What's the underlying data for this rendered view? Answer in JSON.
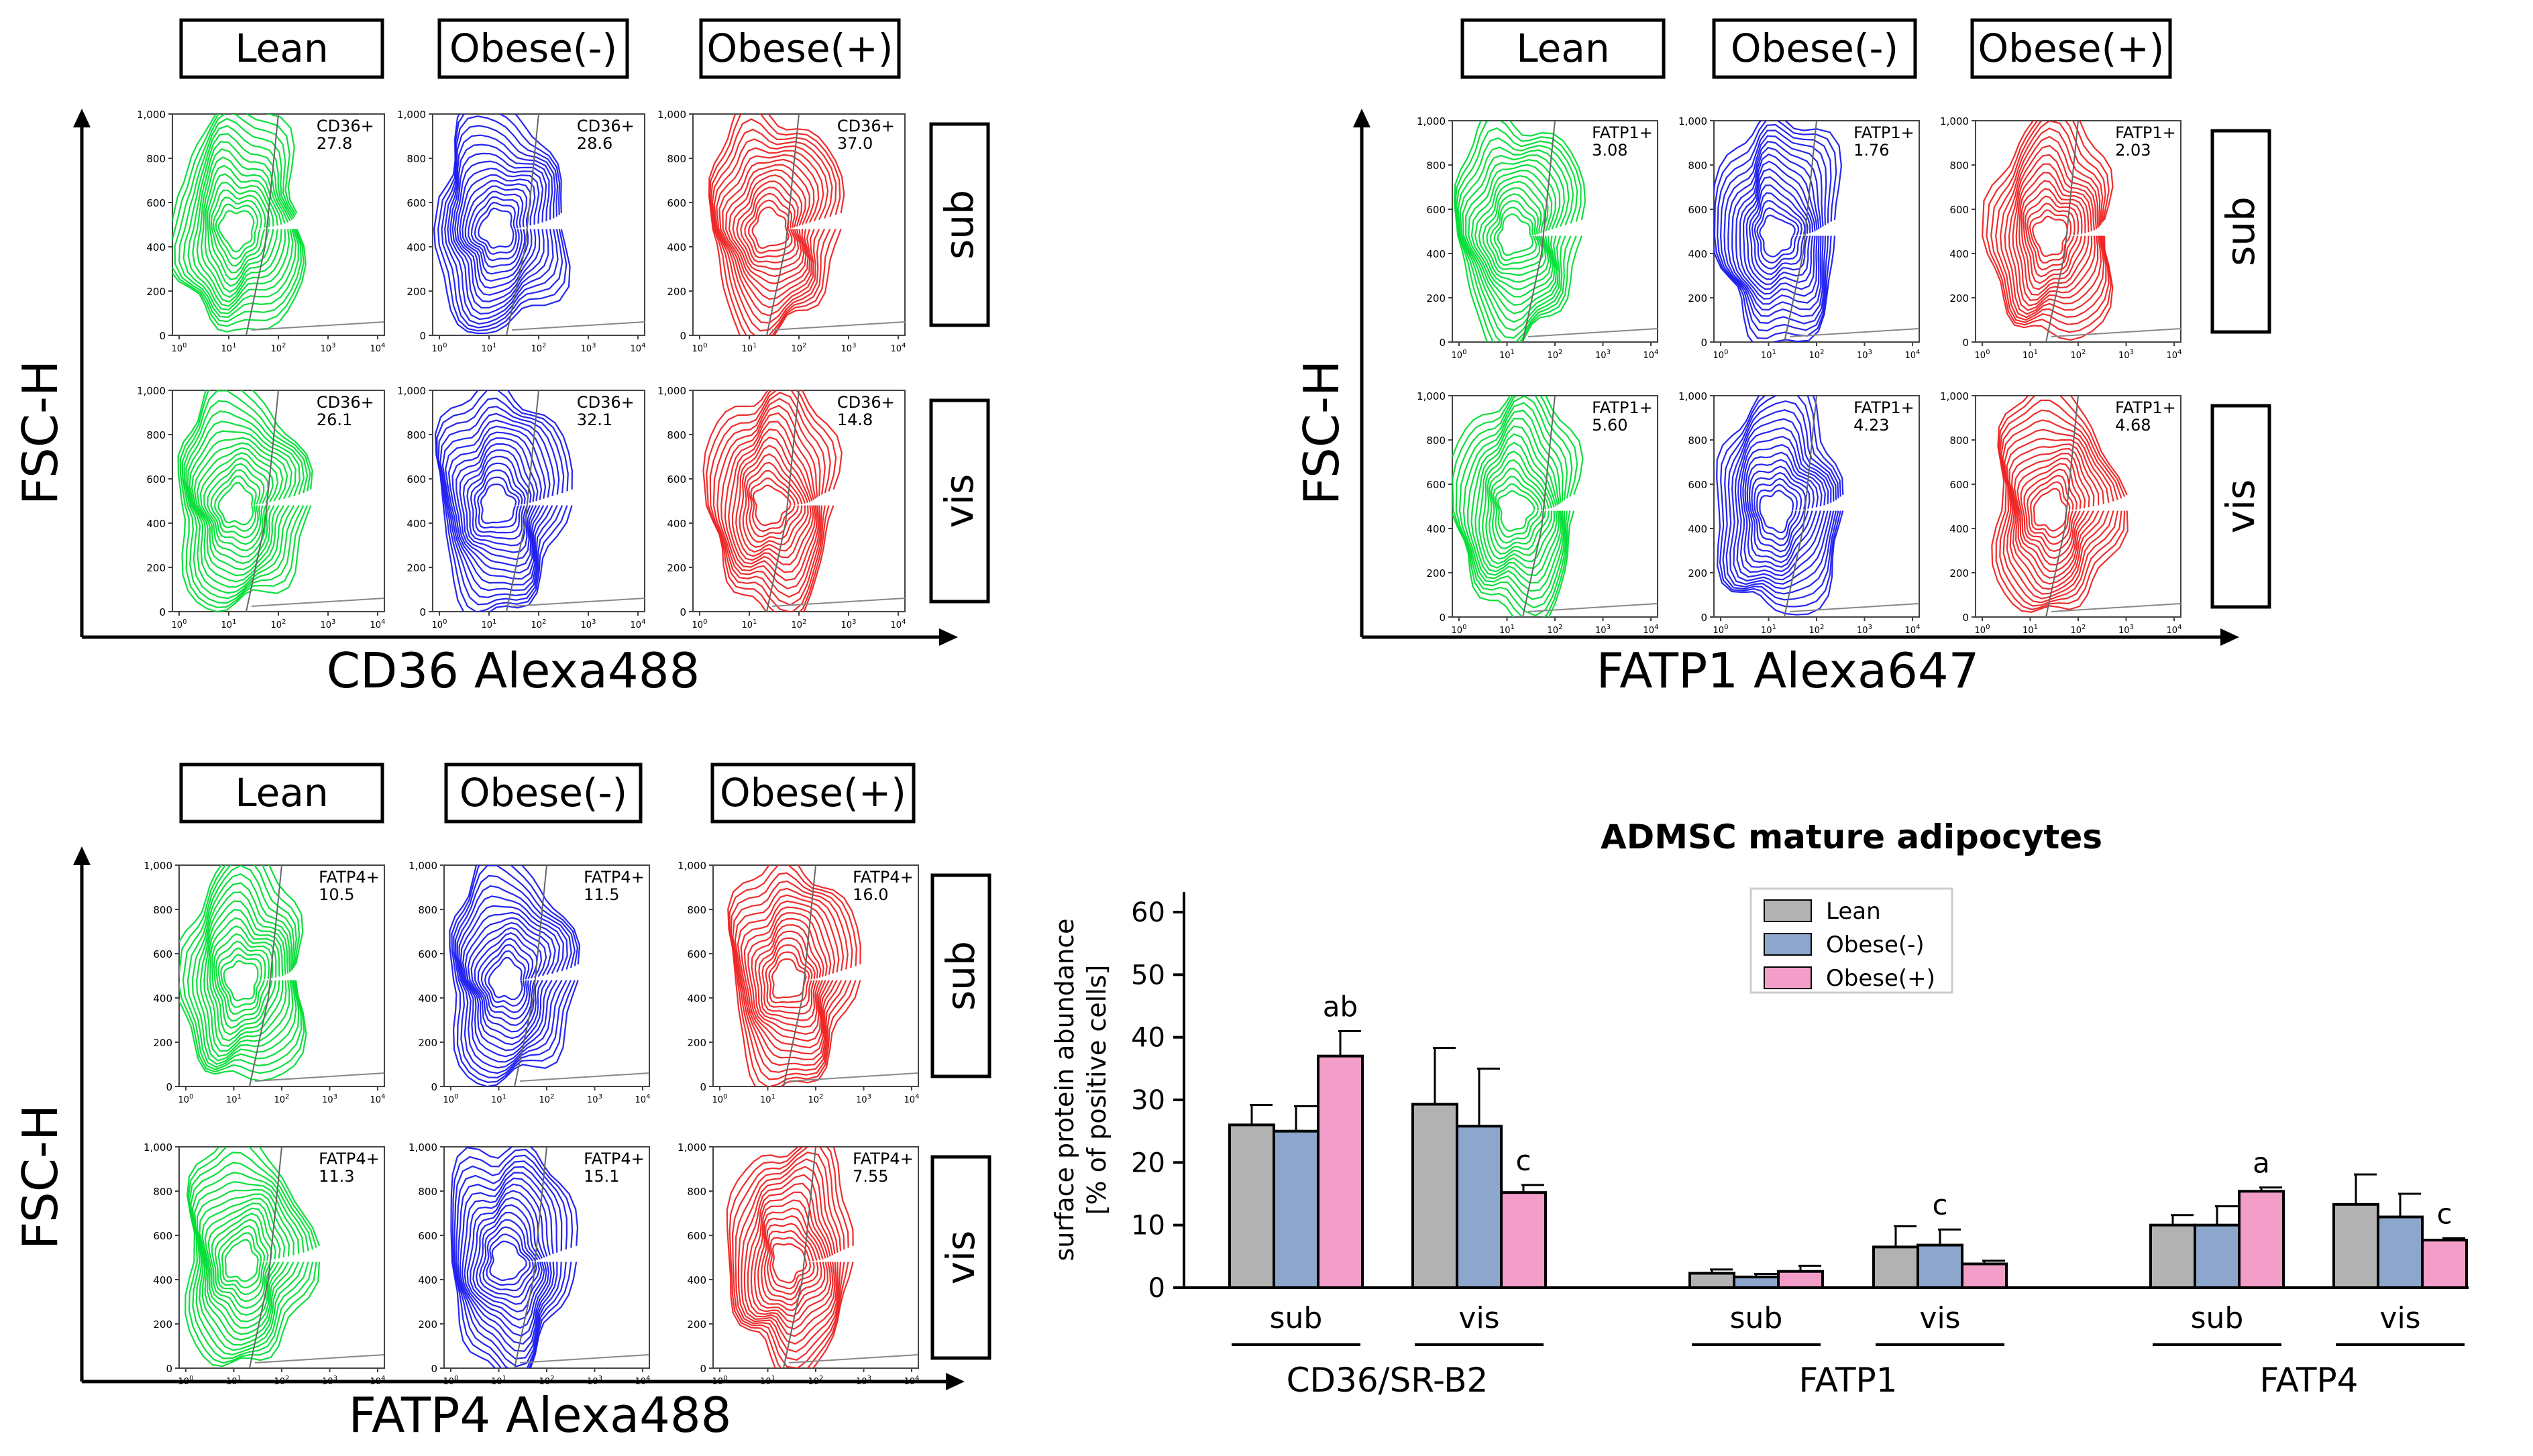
{
  "colors": {
    "lean": "#00dd33",
    "obese_minus": "#1a1aee",
    "obese_plus": "#ee2222",
    "bar_lean": "#b2b2b2",
    "bar_obese_minus": "#8ca6cc",
    "bar_obese_plus": "#f29ec8"
  },
  "panels": [
    {
      "id": "cd36",
      "xlabel": "CD36 Alexa488",
      "ylabel": "FSC-H",
      "groups": [
        "Lean",
        "Obese(-)",
        "Obese(+)"
      ],
      "rows": [
        "sub",
        "vis"
      ],
      "gate_label": "CD36+",
      "values": [
        [
          "27.8",
          "28.6",
          "37.0"
        ],
        [
          "26.1",
          "32.1",
          "14.8"
        ]
      ],
      "yticks": [
        "1,000",
        "800",
        "600",
        "400",
        "200",
        "0"
      ]
    },
    {
      "id": "fatp1",
      "xlabel": "FATP1 Alexa647",
      "ylabel": "FSC-H",
      "groups": [
        "Lean",
        "Obese(-)",
        "Obese(+)"
      ],
      "rows": [
        "sub",
        "vis"
      ],
      "gate_label": "FATP1+",
      "values": [
        [
          "3.08",
          "1.76",
          "2.03"
        ],
        [
          "5.60",
          "4.23",
          "4.68"
        ]
      ],
      "yticks": [
        "1,000",
        "800",
        "600",
        "400",
        "200",
        "0"
      ]
    },
    {
      "id": "fatp4",
      "xlabel": "FATP4  Alexa488",
      "ylabel": "FSC-H",
      "groups": [
        "Lean",
        "Obese(-)",
        "Obese(+)"
      ],
      "rows": [
        "sub",
        "vis"
      ],
      "gate_label": "FATP4+",
      "values": [
        [
          "10.5",
          "11.5",
          "16.0"
        ],
        [
          "11.3",
          "15.1",
          "7.55"
        ]
      ],
      "yticks": [
        "1,000",
        "800",
        "600",
        "400",
        "200",
        "0"
      ]
    }
  ],
  "chart_data": {
    "type": "bar",
    "title": "ADMSC mature adipocytes",
    "ylabel_line1": "surface protein abundance",
    "ylabel_line2": "[% of positive cells]",
    "ylim": [
      0,
      60
    ],
    "yticks": [
      "0",
      "10",
      "20",
      "30",
      "40",
      "50",
      "60"
    ],
    "legend": [
      "Lean",
      "Obese(-)",
      "Obese(+)"
    ],
    "groups": [
      "CD36/SR-B2",
      "FATP1",
      "FATP4"
    ],
    "subcategories": [
      "sub",
      "vis",
      "sub",
      "vis",
      "sub",
      "vis"
    ],
    "series": [
      {
        "name": "Lean",
        "values": [
          26,
          29.3,
          2.3,
          6.5,
          10,
          13.3
        ],
        "errors": [
          3.2,
          9,
          0.6,
          3.3,
          1.6,
          4.8
        ]
      },
      {
        "name": "Obese(-)",
        "values": [
          25,
          25.8,
          1.7,
          6.8,
          10,
          11.3
        ],
        "errors": [
          4,
          9.2,
          0.5,
          2.5,
          3,
          3.7
        ]
      },
      {
        "name": "Obese(+)",
        "values": [
          37,
          15.2,
          2.6,
          3.8,
          15.4,
          7.6
        ],
        "errors": [
          4,
          1.2,
          0.9,
          0.5,
          0.6,
          0.3
        ]
      }
    ],
    "annotations": [
      "ab",
      "c",
      "c",
      "a",
      "c"
    ]
  }
}
